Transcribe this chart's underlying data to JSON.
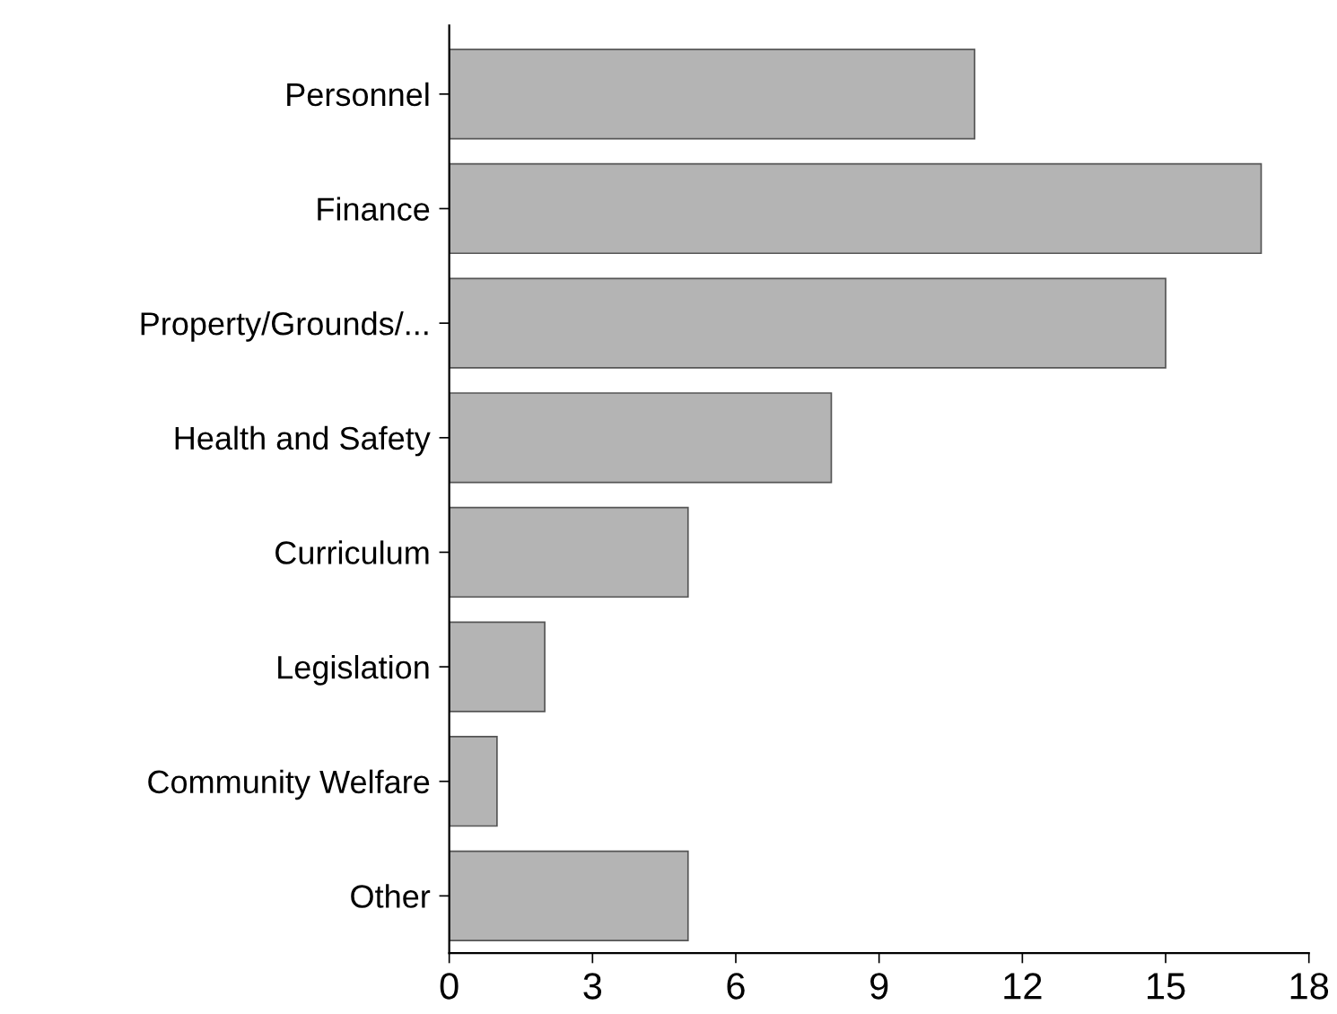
{
  "chart_data": {
    "type": "bar",
    "orientation": "horizontal",
    "categories": [
      "Personnel",
      "Finance",
      "Property/Grounds/...",
      "Health and Safety",
      "Curriculum",
      "Legislation",
      "Community Welfare",
      "Other"
    ],
    "values": [
      11,
      17,
      15,
      8,
      5,
      2,
      1,
      5
    ],
    "color": "#b4b4b4",
    "xlim": [
      0,
      18
    ],
    "xticks": [
      0,
      3,
      6,
      9,
      12,
      15,
      18
    ],
    "grid": false,
    "legend": false
  }
}
